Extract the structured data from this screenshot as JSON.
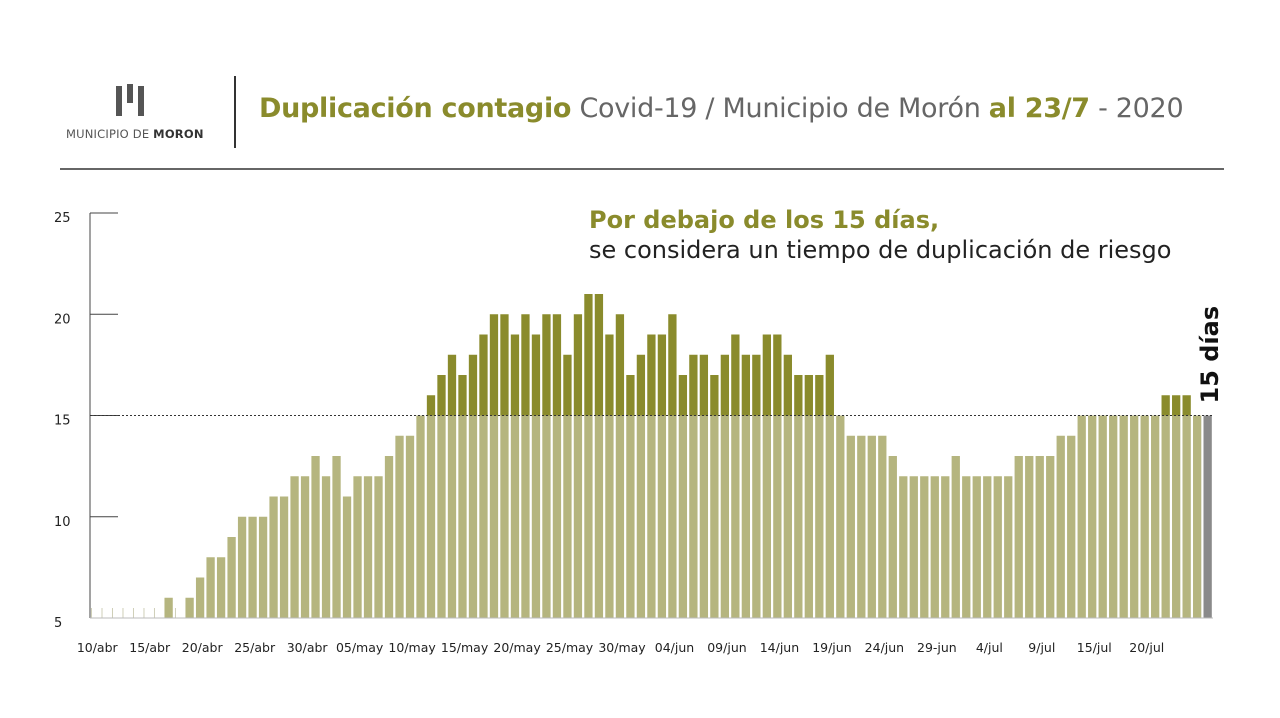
{
  "header": {
    "logo_text_regular": "MUNICIPIO DE ",
    "logo_text_bold": "MORON",
    "title_part1": "Duplicación contagio",
    "title_part2": " Covid-19 / Municipio de Morón ",
    "title_part3": "al 23/7",
    "title_part4": " - 2020"
  },
  "annotation": {
    "line1": "Por debajo de los 15 días,",
    "line2": "se considera un tiempo de duplicación de riesgo"
  },
  "colors": {
    "bar_light": "#b5b57f",
    "bar_dark": "#8a8b2c",
    "bar_last": "#8a8a8a",
    "accent": "#8a8b2c"
  },
  "chart_data": {
    "type": "bar",
    "ylim": [
      5,
      25
    ],
    "yticks": [
      5,
      10,
      15,
      20,
      25
    ],
    "threshold": 15,
    "threshold_label": "15 días",
    "xtick_labels": [
      "10/abr",
      "15/abr",
      "20/abr",
      "25/abr",
      "30/abr",
      "05/may",
      "10/may",
      "15/may",
      "20/may",
      "25/may",
      "30/may",
      "04/jun",
      "09/jun",
      "14/jun",
      "19/jun",
      "24/jun",
      "29-jun",
      "4/jul",
      "9/jul",
      "15/jul",
      "20/jul"
    ],
    "xtick_index": [
      0,
      5,
      10,
      15,
      20,
      25,
      30,
      35,
      40,
      45,
      50,
      55,
      60,
      65,
      70,
      75,
      80,
      85,
      90,
      95,
      100
    ],
    "start_label": "10/abr",
    "end_label": "23/7",
    "values": [
      5,
      5,
      5,
      5,
      5,
      5,
      5,
      6,
      5,
      6,
      7,
      8,
      8,
      9,
      10,
      10,
      10,
      11,
      11,
      12,
      12,
      13,
      12,
      13,
      11,
      12,
      12,
      12,
      13,
      14,
      14,
      15,
      16,
      17,
      18,
      17,
      18,
      19,
      20,
      20,
      19,
      20,
      19,
      20,
      20,
      18,
      20,
      21,
      21,
      19,
      20,
      17,
      18,
      19,
      19,
      20,
      17,
      18,
      18,
      17,
      18,
      19,
      18,
      18,
      19,
      19,
      18,
      17,
      17,
      17,
      18,
      15,
      14,
      14,
      14,
      14,
      13,
      12,
      12,
      12,
      12,
      12,
      13,
      12,
      12,
      12,
      12,
      12,
      13,
      13,
      13,
      13,
      14,
      14,
      15,
      15,
      15,
      15,
      15,
      15,
      15,
      15,
      16,
      16,
      16,
      15,
      15
    ]
  }
}
